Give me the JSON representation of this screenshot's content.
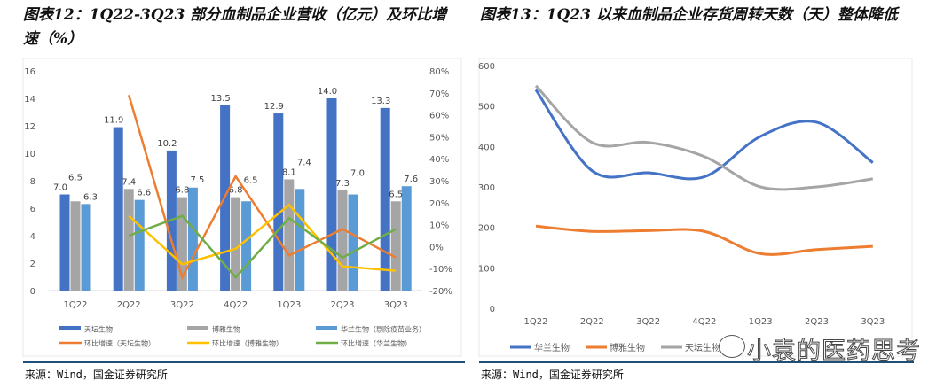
{
  "left": {
    "title": "图表12：1Q22-3Q23 部分血制品企业营收（亿元）及环比增速（%）",
    "source": "来源：Wind，国金证券研究所"
  },
  "right": {
    "title": "图表13：1Q23 以来血制品企业存货周转天数（天）整体降低",
    "source": "来源：Wind，国金证券研究所"
  },
  "watermark": "小袁的医药思考",
  "chart_data": [
    {
      "type": "bar",
      "categories": [
        "1Q22",
        "2Q22",
        "3Q22",
        "4Q22",
        "1Q23",
        "2Q23",
        "3Q23"
      ],
      "ylim": [
        0,
        16
      ],
      "yticks": [
        "0",
        "2",
        "4",
        "6",
        "8",
        "10",
        "12",
        "14",
        "16"
      ],
      "y2lim": [
        -20,
        80
      ],
      "y2ticks": [
        "-20%",
        "-10%",
        "0%",
        "10%",
        "20%",
        "30%",
        "40%",
        "50%",
        "60%",
        "70%",
        "80%"
      ],
      "legend": "bottom",
      "grid": false,
      "series": [
        {
          "name": "天坛生物",
          "kind": "bar",
          "color": "#4472c4",
          "values": [
            7.0,
            11.9,
            10.2,
            13.5,
            12.9,
            14.0,
            13.3
          ],
          "labels": [
            "7.0",
            "11.9",
            "10.2",
            "13.5",
            "12.9",
            "14.0",
            "13.3"
          ]
        },
        {
          "name": "博雅生物",
          "kind": "bar",
          "color": "#a5a5a5",
          "values": [
            6.5,
            7.4,
            6.8,
            6.8,
            8.1,
            7.3,
            6.5
          ],
          "labels": [
            "6.5",
            "7.4",
            "6.8",
            "6.8",
            "8.1",
            "7.3",
            "6.5"
          ]
        },
        {
          "name": "华兰生物（剔除疫苗业务）",
          "kind": "bar",
          "color": "#5b9bd5",
          "values": [
            6.3,
            6.6,
            7.5,
            6.5,
            7.4,
            7.0,
            7.6
          ],
          "labels": [
            "6.3",
            "6.6",
            "7.5",
            "6.5",
            "7.4",
            "7.0",
            "7.6"
          ]
        },
        {
          "name": "环比增速（天坛生物）",
          "kind": "line",
          "axis": "right",
          "color": "#ed7d31",
          "values": [
            null,
            69,
            -14,
            32,
            -4,
            8,
            -5
          ]
        },
        {
          "name": "环比增速（博雅生物）",
          "kind": "line",
          "axis": "right",
          "color": "#ffc000",
          "values": [
            null,
            14,
            -8,
            -1,
            19,
            -9,
            -11
          ]
        },
        {
          "name": "环比增速（华兰生物）",
          "kind": "line",
          "axis": "right",
          "color": "#70ad47",
          "values": [
            null,
            5,
            14,
            -14,
            13,
            -5,
            8
          ]
        }
      ]
    },
    {
      "type": "line",
      "categories": [
        "1Q22",
        "2Q22",
        "3Q22",
        "4Q22",
        "1Q23",
        "2Q23",
        "3Q23"
      ],
      "ylim": [
        0,
        600
      ],
      "yticks": [
        "0",
        "100",
        "200",
        "300",
        "400",
        "500",
        "600"
      ],
      "legend": "bottom",
      "grid": false,
      "series": [
        {
          "name": "华兰生物",
          "color": "#4472c4",
          "values": [
            540,
            340,
            335,
            325,
            425,
            460,
            360
          ]
        },
        {
          "name": "博雅生物",
          "color": "#ed7d31",
          "values": [
            203,
            190,
            192,
            190,
            135,
            145,
            153
          ]
        },
        {
          "name": "天坛生物",
          "color": "#a5a5a5",
          "values": [
            550,
            410,
            410,
            375,
            300,
            300,
            320
          ]
        }
      ]
    }
  ]
}
